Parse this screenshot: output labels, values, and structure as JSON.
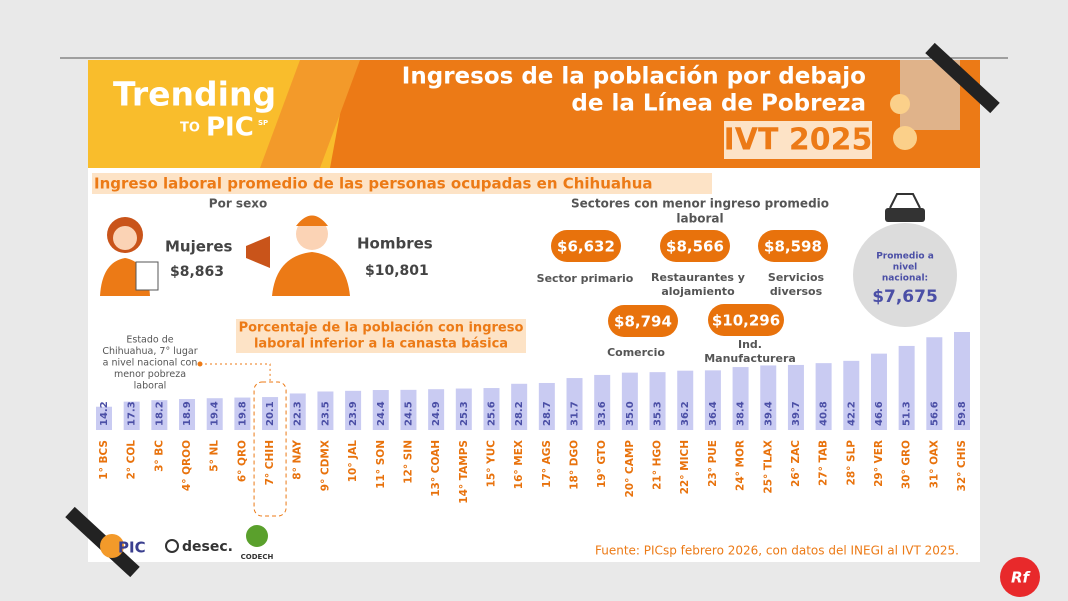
{
  "brand": {
    "line1": "Trending",
    "to": "TO",
    "pic": "PIC",
    "sp": "SP"
  },
  "header": {
    "title_lines": [
      "Ingresos de la población por debajo",
      "de la Línea de Pobreza"
    ],
    "period": "IVT 2025"
  },
  "subtitle": "Ingreso laboral promedio de las personas ocupadas en Chihuahua",
  "by_sex": {
    "heading": "Por sexo",
    "women": {
      "label": "Mujeres",
      "amount": "$8,863"
    },
    "men": {
      "label": "Hombres",
      "amount": "$10,801"
    }
  },
  "sectors": {
    "heading_lines": [
      "Sectores con menor ingreso promedio",
      "laboral"
    ],
    "items": [
      {
        "amount": "$6,632",
        "label_lines": [
          "Sector primario"
        ]
      },
      {
        "amount": "$8,566",
        "label_lines": [
          "Restaurantes y",
          "alojamiento"
        ]
      },
      {
        "amount": "$8,598",
        "label_lines": [
          "Servicios",
          "diversos"
        ]
      },
      {
        "amount": "$8,794",
        "label_lines": [
          "Comercio"
        ]
      },
      {
        "amount": "$10,296",
        "label_lines": [
          "Ind.",
          "Manufacturera"
        ]
      }
    ]
  },
  "national": {
    "label_lines": [
      "Promedio a",
      "nivel",
      "nacional:"
    ],
    "amount": "$7,675"
  },
  "chart_data": {
    "type": "bar",
    "title_lines": [
      "Porcentaje de la población con ingreso",
      "laboral inferior a la canasta básica"
    ],
    "annotation_lines": [
      "Estado de",
      "Chihuahua, 7° lugar",
      "a nivel nacional con",
      "menor pobreza",
      "laboral"
    ],
    "categories": [
      "1° BCS",
      "2° COL",
      "3° BC",
      "4° QROO",
      "5° NL",
      "6° QRO",
      "7° CHIH",
      "8° NAY",
      "9° CDMX",
      "10° JAL",
      "11° SON",
      "12° SIN",
      "13° COAH",
      "14° TAMPS",
      "15° YUC",
      "16° MEX",
      "17° AGS",
      "18° DGO",
      "19° GTO",
      "20° CAMP",
      "21° HGO",
      "22° MICH",
      "23° PUE",
      "24° MOR",
      "25° TLAX",
      "26° ZAC",
      "27° TAB",
      "28° SLP",
      "29° VER",
      "30° GRO",
      "31° OAX",
      "32° CHIS"
    ],
    "values": [
      14.2,
      17.3,
      18.2,
      18.9,
      19.4,
      19.8,
      20.1,
      22.3,
      23.5,
      23.9,
      24.4,
      24.5,
      24.9,
      25.3,
      25.6,
      28.2,
      28.7,
      31.7,
      33.6,
      35.0,
      35.3,
      36.2,
      36.4,
      38.4,
      39.4,
      39.7,
      40.8,
      42.2,
      46.6,
      51.3,
      56.6,
      59.8
    ],
    "value_labels": [
      "14.2",
      "17.3",
      "18.2",
      "18.9",
      "19.4",
      "19.8",
      "20.1",
      "22.3",
      "23.5",
      "23.9",
      "24.4",
      "24.5",
      "24.9",
      "25.3",
      "25.6",
      "28.2",
      "28.7",
      "31.7",
      "33.6",
      "35.0",
      "35.3",
      "36.2",
      "36.4",
      "38.4",
      "39.4",
      "39.7",
      "40.8",
      "42.2",
      "46.6",
      "51.3",
      "56.6",
      "59.8"
    ],
    "color": "#c9cbf2",
    "label_color": "#4b4fa6",
    "category_color": "#e8720c"
  },
  "footer": {
    "source": "Fuente: PICsp febrero 2026, con datos del INEGI al IVT 2025.",
    "logos": [
      "PIC",
      "desec.",
      "CODECH"
    ],
    "badge": "Rf"
  }
}
